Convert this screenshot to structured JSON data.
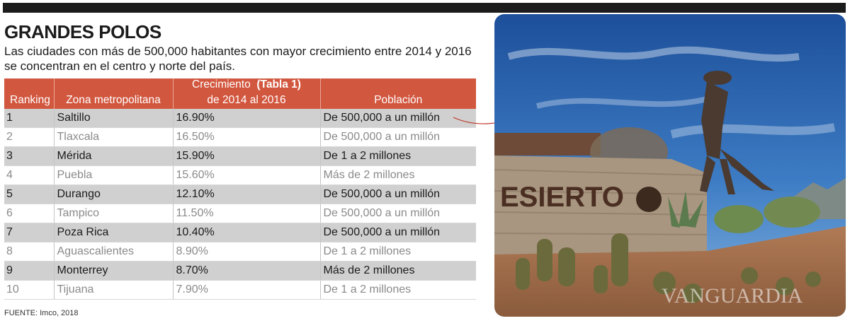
{
  "title": "GRANDES POLOS",
  "subtitle": "Las ciudades con más de 500,000 habitantes con mayor crecimiento entre 2014 y 2016 se concentran en el centro y norte del país.",
  "table": {
    "headers": {
      "ranking": "Ranking",
      "zona": "Zona metropolitana",
      "crecimiento_line1": "Crecimiento",
      "crecimiento_tag": "(Tabla 1)",
      "crecimiento_line2": "de 2014 al 2016",
      "poblacion": "Población"
    },
    "rows": [
      {
        "rank": "1",
        "zona": "Saltillo",
        "crec": "16.90%",
        "pob": "De 500,000 a un millón"
      },
      {
        "rank": "2",
        "zona": "Tlaxcala",
        "crec": "16.50%",
        "pob": "De 500,000 a un millón"
      },
      {
        "rank": "3",
        "zona": "Mérida",
        "crec": "15.90%",
        "pob": "De 1 a 2 millones"
      },
      {
        "rank": "4",
        "zona": "Puebla",
        "crec": "15.60%",
        "pob": "Más de 2 millones"
      },
      {
        "rank": "5",
        "zona": "Durango",
        "crec": "12.10%",
        "pob": "De 500,000 a un millón"
      },
      {
        "rank": "6",
        "zona": "Tampico",
        "crec": "11.50%",
        "pob": "De 500,000 a un millón"
      },
      {
        "rank": "7",
        "zona": "Poza Rica",
        "crec": "10.40%",
        "pob": "De 500,000 a un millón"
      },
      {
        "rank": "8",
        "zona": "Aguascalientes",
        "crec": "8.90%",
        "pob": "De 1 a 2 millones"
      },
      {
        "rank": "9",
        "zona": "Monterrey",
        "crec": "8.70%",
        "pob": "Más de 2 millones"
      },
      {
        "rank": "10",
        "zona": "Tijuana",
        "crec": "7.90%",
        "pob": "De 1 a 2 millones"
      }
    ]
  },
  "source": "FUENTE: Imco, 2018",
  "photo": {
    "sign_text": "ESIERTO",
    "watermark": "VANGUARDIA"
  },
  "colors": {
    "header": "#d2573f",
    "row_odd": "#d0d0d0",
    "topbar": "#1c1c1c",
    "connector": "#c0392b"
  }
}
